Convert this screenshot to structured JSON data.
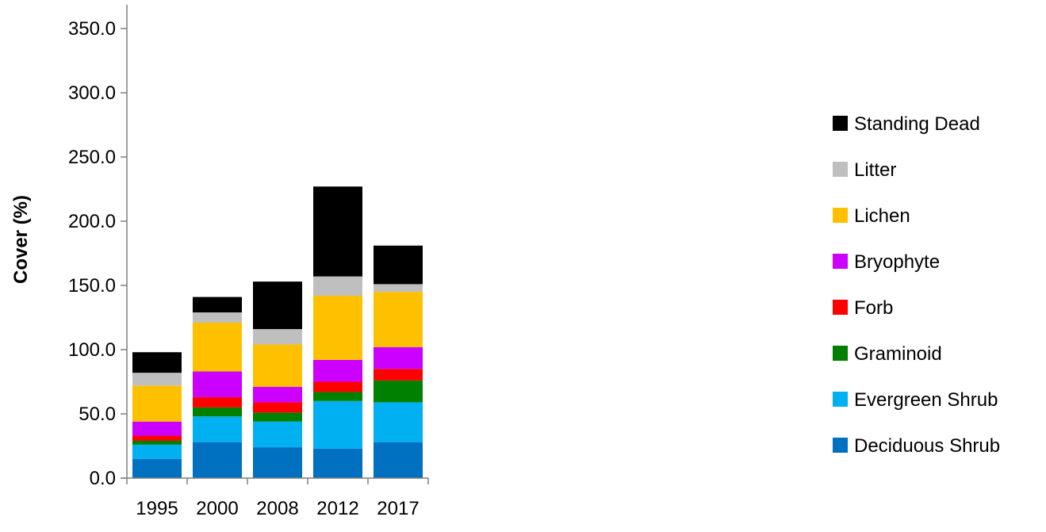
{
  "chart_data": {
    "type": "bar",
    "stacked": true,
    "title": "",
    "xlabel": "",
    "ylabel": "Cover (%)",
    "ylim": [
      0,
      350
    ],
    "y_ticks": [
      "0.0",
      "50.0",
      "100.0",
      "150.0",
      "200.0",
      "250.0",
      "300.0",
      "350.0"
    ],
    "categories": [
      "1995",
      "2000",
      "2008",
      "2012",
      "2017"
    ],
    "grid": false,
    "legend_position": "right",
    "series": [
      {
        "name": "Deciduous Shrub",
        "color": "#0070C0",
        "values": [
          15,
          28,
          24,
          23,
          28
        ]
      },
      {
        "name": "Evergreen Shrub",
        "color": "#00B0F0",
        "values": [
          11,
          20,
          20,
          37,
          31
        ]
      },
      {
        "name": "Graminoid",
        "color": "#008000",
        "values": [
          3,
          7,
          7,
          7,
          17
        ]
      },
      {
        "name": "Forb",
        "color": "#FF0000",
        "values": [
          4,
          8,
          8,
          8,
          9
        ]
      },
      {
        "name": "Bryophyte",
        "color": "#CC00FF",
        "values": [
          11,
          20,
          12,
          17,
          17
        ]
      },
      {
        "name": "Lichen",
        "color": "#FFC000",
        "values": [
          28,
          38,
          33,
          50,
          43
        ]
      },
      {
        "name": "Litter",
        "color": "#BFBFBF",
        "values": [
          10,
          8,
          12,
          15,
          6
        ]
      },
      {
        "name": "Standing Dead",
        "color": "#000000",
        "values": [
          16,
          12,
          37,
          70,
          30
        ]
      }
    ]
  }
}
